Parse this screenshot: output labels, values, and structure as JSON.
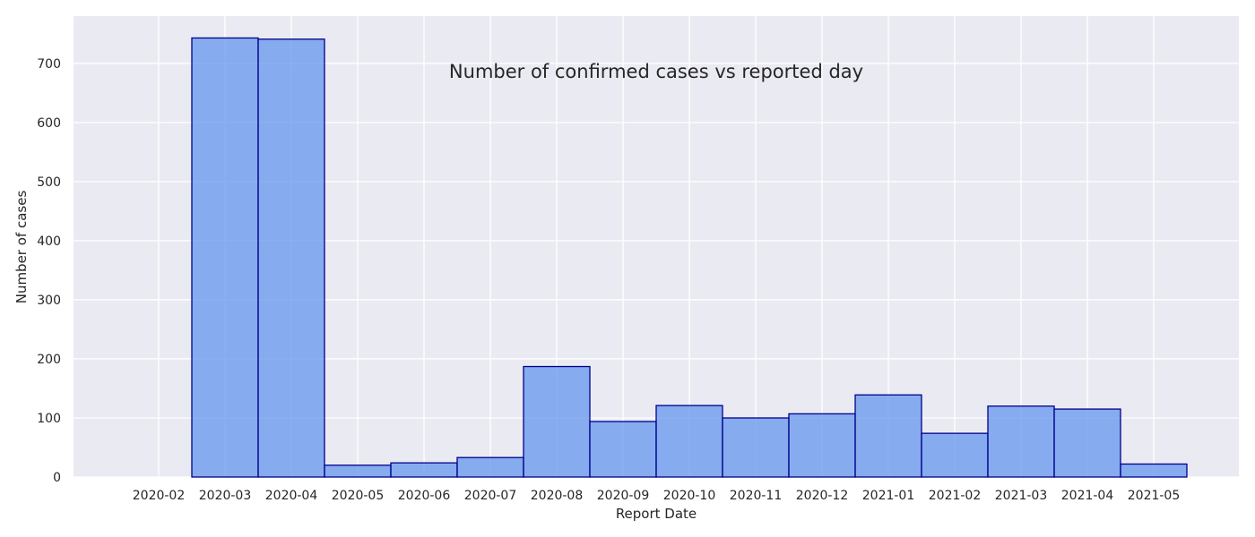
{
  "chart_data": {
    "type": "bar",
    "title": "Number of confirmed cases vs reported day",
    "xlabel": "Report Date",
    "ylabel": "Number of cases",
    "categories": [
      "2020-02",
      "2020-03",
      "2020-04",
      "2020-05",
      "2020-06",
      "2020-07",
      "2020-08",
      "2020-09",
      "2020-10",
      "2020-11",
      "2020-12",
      "2021-01",
      "2021-02",
      "2021-03",
      "2021-04",
      "2021-05"
    ],
    "values": [
      0,
      743,
      741,
      20,
      24,
      33,
      187,
      94,
      121,
      100,
      107,
      139,
      74,
      120,
      115,
      22
    ],
    "ylim": [
      0,
      780
    ],
    "yticks": [
      0,
      100,
      200,
      300,
      400,
      500,
      600,
      700
    ],
    "grid": true,
    "colors": {
      "background": "#eaeaf2",
      "grid": "#ffffff",
      "bar_fill": "#6495ed",
      "bar_edge": "#00008b"
    }
  }
}
